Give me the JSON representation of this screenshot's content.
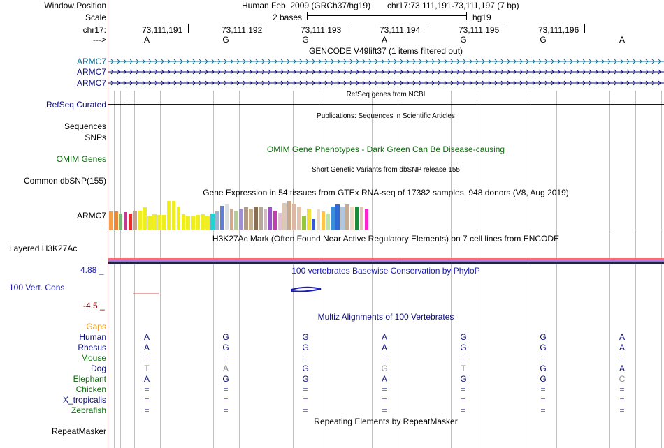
{
  "position": {
    "window_label": "Window Position",
    "assembly": "Human Feb. 2009 (GRCh37/hg19)",
    "range": "chr17:73,111,191-73,111,197 (7 bp)"
  },
  "scale": {
    "label": "Scale",
    "bar_text": "2 bases",
    "db": "hg19"
  },
  "ruler": {
    "label": "chr17:",
    "ticks": [
      "73,111,191",
      "73,111,192",
      "73,111,193",
      "73,111,194",
      "73,111,195",
      "73,111,196"
    ]
  },
  "strand": {
    "label": "--->",
    "bases": [
      "A",
      "G",
      "G",
      "A",
      "G",
      "G",
      "A"
    ]
  },
  "gencode": {
    "title": "GENCODE V49lift37 (1 items filtered out)",
    "items": [
      "ARMC7",
      "ARMC7",
      "ARMC7"
    ],
    "color": "#12709b"
  },
  "refseq": {
    "title": "RefSeq genes from NCBI",
    "label": "RefSeq Curated",
    "color": "#0c0c78"
  },
  "publications": {
    "title": "Publications: Sequences in Scientific Articles",
    "sequences_label": "Sequences",
    "snps_label": "SNPs"
  },
  "omim": {
    "title": "OMIM Gene Phenotypes - Dark Green Can Be Disease-causing",
    "label": "OMIM Genes",
    "color": "#0f6b0f"
  },
  "dbsnp": {
    "title": "Short Genetic Variants from dbSNP release 155",
    "label": "Common dbSNP(155)"
  },
  "gtex": {
    "title": "Gene Expression in 54 tissues from GTEx RNA-seq of 17382 samples, 948 donors (V8, Aug 2019)",
    "label": "ARMC7",
    "levels": [
      0.62,
      0.62,
      0.55,
      0.6,
      0.55,
      0.65,
      0.65,
      0.75,
      0.48,
      0.52,
      0.5,
      0.5,
      0.98,
      0.98,
      0.78,
      0.52,
      0.48,
      0.48,
      0.5,
      0.52,
      0.48,
      0.55,
      0.62,
      0.82,
      0.85,
      0.72,
      0.65,
      0.68,
      0.75,
      0.72,
      0.78,
      0.78,
      0.72,
      0.75,
      0.65,
      0.58,
      0.9,
      0.98,
      0.88,
      0.78,
      0.48,
      0.72,
      0.35,
      0.68,
      0.62,
      0.55,
      0.78,
      0.85,
      0.78,
      0.85,
      0.78,
      0.78,
      0.78,
      0.72
    ],
    "colors": [
      "#f7a04a",
      "#e88838",
      "#7ab87a",
      "#c23b91",
      "#e32e2e",
      "#c8a08c",
      "#f0ee26",
      "#eeee20",
      "#eeee20",
      "#eeee20",
      "#eeee20",
      "#eeee20",
      "#eeee20",
      "#eeee20",
      "#eeee20",
      "#eeee20",
      "#eeee20",
      "#eeee20",
      "#eeee20",
      "#eeee20",
      "#eeee20",
      "#22d3d3",
      "#9cb4ce",
      "#5f7fd8",
      "#dedede",
      "#d2a98a",
      "#b8cc9a",
      "#a08fd0",
      "#b49a82",
      "#c9b08c",
      "#8a6e52",
      "#b6a898",
      "#d4b8c4",
      "#9a52c8",
      "#c83ab8",
      "#e2c2d2",
      "#dcc8b4",
      "#c8a88c",
      "#dcb8a4",
      "#e0c4b0",
      "#94c83c",
      "#f0e040",
      "#3a5ad0",
      "#ead8c6",
      "#ffc44c",
      "#b9e6a0",
      "#3a8fd8",
      "#2e6ad6",
      "#aec6de",
      "#c4ac94",
      "#f2d8c4",
      "#1c8a3a",
      "#dcc8b4",
      "#ff20d0"
    ]
  },
  "h3k27ac": {
    "title": "H3K27Ac Mark (Often Found Near Active Regulatory Elements) on 7 cell lines from ENCODE",
    "label": "Layered H3K27Ac"
  },
  "phylop": {
    "title": "100 vertebrates Basewise Conservation by PhyloP",
    "label": "100 Vert. Cons",
    "max": "4.88 _",
    "min": "-4.5 _",
    "color": "#1b1bb0"
  },
  "multiz": {
    "title": "Multiz Alignments of 100 Vertebrates",
    "gaps_label": "Gaps",
    "species": [
      {
        "name": "Human",
        "color": "#0c0c78",
        "bases": [
          "A",
          "G",
          "G",
          "A",
          "G",
          "G",
          "A"
        ],
        "match": [
          true,
          true,
          true,
          true,
          true,
          true,
          true
        ]
      },
      {
        "name": "Rhesus",
        "color": "#0c0c78",
        "bases": [
          "A",
          "G",
          "G",
          "A",
          "G",
          "G",
          "A"
        ],
        "match": [
          true,
          true,
          true,
          true,
          true,
          true,
          true
        ]
      },
      {
        "name": "Mouse",
        "color": "#0f6b0f",
        "bases": [
          "=",
          "=",
          "=",
          "=",
          "=",
          "=",
          "="
        ],
        "match": [
          false,
          false,
          false,
          false,
          false,
          false,
          false
        ]
      },
      {
        "name": "Dog",
        "color": "#0c0c78",
        "bases": [
          "T",
          "A",
          "G",
          "G",
          "T",
          "G",
          "A"
        ],
        "match": [
          false,
          false,
          true,
          false,
          false,
          true,
          true
        ]
      },
      {
        "name": "Elephant",
        "color": "#0f6b0f",
        "bases": [
          "A",
          "G",
          "G",
          "A",
          "G",
          "G",
          "C"
        ],
        "match": [
          true,
          true,
          true,
          true,
          true,
          true,
          false
        ]
      },
      {
        "name": "Chicken",
        "color": "#0f6b0f",
        "bases": [
          "=",
          "=",
          "=",
          "=",
          "=",
          "=",
          "="
        ],
        "match": [
          false,
          false,
          false,
          false,
          false,
          false,
          false
        ]
      },
      {
        "name": "X_tropicalis",
        "color": "#0c0c78",
        "bases": [
          "=",
          "=",
          "=",
          "=",
          "=",
          "=",
          "="
        ],
        "match": [
          false,
          false,
          false,
          false,
          false,
          false,
          false
        ]
      },
      {
        "name": "Zebrafish",
        "color": "#0f6b0f",
        "bases": [
          "=",
          "=",
          "=",
          "=",
          "=",
          "=",
          "="
        ],
        "match": [
          false,
          false,
          false,
          false,
          false,
          false,
          false
        ]
      }
    ]
  },
  "repeatmasker": {
    "title": "Repeating Elements by RepeatMasker",
    "label": "RepeatMasker"
  },
  "colors": {
    "gaps_label": "#e89010",
    "phylop_min": "#8b0000",
    "guide_line": "#c0c0c0",
    "left_divider": "#f08080"
  }
}
